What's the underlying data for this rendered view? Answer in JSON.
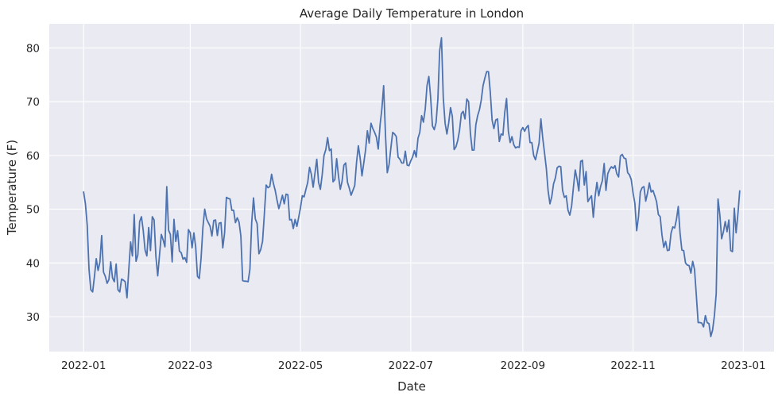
{
  "colors": {
    "line": "#4c72b0",
    "background": "#eaeaf2",
    "grid": "#ffffff"
  },
  "chart_data": {
    "type": "line",
    "title": "Average Daily Temperature in London",
    "xlabel": "Date",
    "ylabel": "Temperature (F)",
    "x_start": "2022-01-01",
    "x_end": "2022-12-31",
    "xlim": [
      "2021-12-13",
      "2023-01-18"
    ],
    "ylim": [
      23.5,
      84.5
    ],
    "x_ticks": [
      {
        "date": "2022-01-01",
        "label": "2022-01"
      },
      {
        "date": "2022-03-01",
        "label": "2022-03"
      },
      {
        "date": "2022-05-01",
        "label": "2022-05"
      },
      {
        "date": "2022-07-01",
        "label": "2022-07"
      },
      {
        "date": "2022-09-01",
        "label": "2022-09"
      },
      {
        "date": "2022-11-01",
        "label": "2022-11"
      },
      {
        "date": "2023-01-01",
        "label": "2023-01"
      }
    ],
    "y_ticks": [
      30,
      40,
      50,
      60,
      70,
      80
    ],
    "grid": true,
    "legend": false,
    "series": [
      {
        "values": [
          53.2,
          51.0,
          47.0,
          38.8,
          35.0,
          34.6,
          37.5,
          40.8,
          38.6,
          40.1,
          45.1,
          38.3,
          37.5,
          36.2,
          36.9,
          40.2,
          37.2,
          36.5,
          39.8,
          35.0,
          34.6,
          37.0,
          36.8,
          36.5,
          33.5,
          38.8,
          43.9,
          41.3,
          49.0,
          40.3,
          41.5,
          47.7,
          48.6,
          46.0,
          42.4,
          41.3,
          46.6,
          42.3,
          48.6,
          48.0,
          41.2,
          37.6,
          41.5,
          45.3,
          44.3,
          43.0,
          54.2,
          46.1,
          45.3,
          40.2,
          48.1,
          44.0,
          46.0,
          42.2,
          41.9,
          40.7,
          41.0,
          40.1,
          46.2,
          45.6,
          42.8,
          45.6,
          43.0,
          37.5,
          37.1,
          40.9,
          46.6,
          50.0,
          48.2,
          47.5,
          46.8,
          45.0,
          47.9,
          48.0,
          45.1,
          47.4,
          47.5,
          42.8,
          45.6,
          52.2,
          52.0,
          51.9,
          49.8,
          49.8,
          47.5,
          48.4,
          47.6,
          45.0,
          36.7,
          36.6,
          36.6,
          36.5,
          38.8,
          47.5,
          52.1,
          48.2,
          47.3,
          41.7,
          42.5,
          44.0,
          49.1,
          54.5,
          54.0,
          54.2,
          56.5,
          54.8,
          53.5,
          51.7,
          50.1,
          51.3,
          52.6,
          51.0,
          52.8,
          52.7,
          48.0,
          48.1,
          46.4,
          48.1,
          46.8,
          48.5,
          50.3,
          52.5,
          52.3,
          53.7,
          55.0,
          57.8,
          56.5,
          54.1,
          56.7,
          59.3,
          55.0,
          53.7,
          56.4,
          60.0,
          61.1,
          63.3,
          60.9,
          61.2,
          55.1,
          55.5,
          59.4,
          56.2,
          53.7,
          55.2,
          58.2,
          58.6,
          55.0,
          53.9,
          52.6,
          53.5,
          54.4,
          58.7,
          61.8,
          59.5,
          56.2,
          58.6,
          61.0,
          64.6,
          62.3,
          66.0,
          65.0,
          64.3,
          63.4,
          61.2,
          65.6,
          68.6,
          73.0,
          64.0,
          56.8,
          58.3,
          61.4,
          64.3,
          64.0,
          63.5,
          59.7,
          59.3,
          58.6,
          58.6,
          60.8,
          58.2,
          58.1,
          59.0,
          59.7,
          60.9,
          59.7,
          63.2,
          64.3,
          67.4,
          66.2,
          68.6,
          73.0,
          74.7,
          70.8,
          65.5,
          64.8,
          66.1,
          70.5,
          79.5,
          81.9,
          70.7,
          66.0,
          64.0,
          66.1,
          68.9,
          67.3,
          61.1,
          61.6,
          62.8,
          64.7,
          67.8,
          68.2,
          66.8,
          70.5,
          70.0,
          64.1,
          61.0,
          61.0,
          65.7,
          67.4,
          68.5,
          70.3,
          73.0,
          74.4,
          75.6,
          75.6,
          71.8,
          66.6,
          65.0,
          66.6,
          66.8,
          62.6,
          64.0,
          63.8,
          68.0,
          70.6,
          64.5,
          62.4,
          63.5,
          62.0,
          61.4,
          61.6,
          61.5,
          64.6,
          65.2,
          64.5,
          65.2,
          65.6,
          62.4,
          62.4,
          60.0,
          59.2,
          60.7,
          62.3,
          66.8,
          63.3,
          60.5,
          57.6,
          53.4,
          51.0,
          52.3,
          54.7,
          55.8,
          57.7,
          58.0,
          57.9,
          53.5,
          52.2,
          52.5,
          49.8,
          48.9,
          50.6,
          54.1,
          57.3,
          55.6,
          53.4,
          58.9,
          59.1,
          54.5,
          57.0,
          51.4,
          52.0,
          52.5,
          48.5,
          52.4,
          55.0,
          52.5,
          54.2,
          55.3,
          58.5,
          53.5,
          56.6,
          57.4,
          57.9,
          57.6,
          58.1,
          56.6,
          56.0,
          59.9,
          60.2,
          59.5,
          59.4,
          56.8,
          56.4,
          55.5,
          53.0,
          51.1,
          46.0,
          48.6,
          53.2,
          54.0,
          54.2,
          51.5,
          53.0,
          54.9,
          53.2,
          53.5,
          52.5,
          51.4,
          49.0,
          48.6,
          45.2,
          42.9,
          44.0,
          42.3,
          42.4,
          45.5,
          46.7,
          46.5,
          48.1,
          50.5,
          45.5,
          42.4,
          42.3,
          40.0,
          39.6,
          39.5,
          38.1,
          40.3,
          38.8,
          34.0,
          28.9,
          28.9,
          28.8,
          28.1,
          30.2,
          28.9,
          28.7,
          26.3,
          27.5,
          30.2,
          34.3,
          51.9,
          49.0,
          44.5,
          45.8,
          47.7,
          45.8,
          48.0,
          42.3,
          42.1,
          50.2,
          45.6,
          49.1,
          53.4
        ]
      }
    ]
  }
}
